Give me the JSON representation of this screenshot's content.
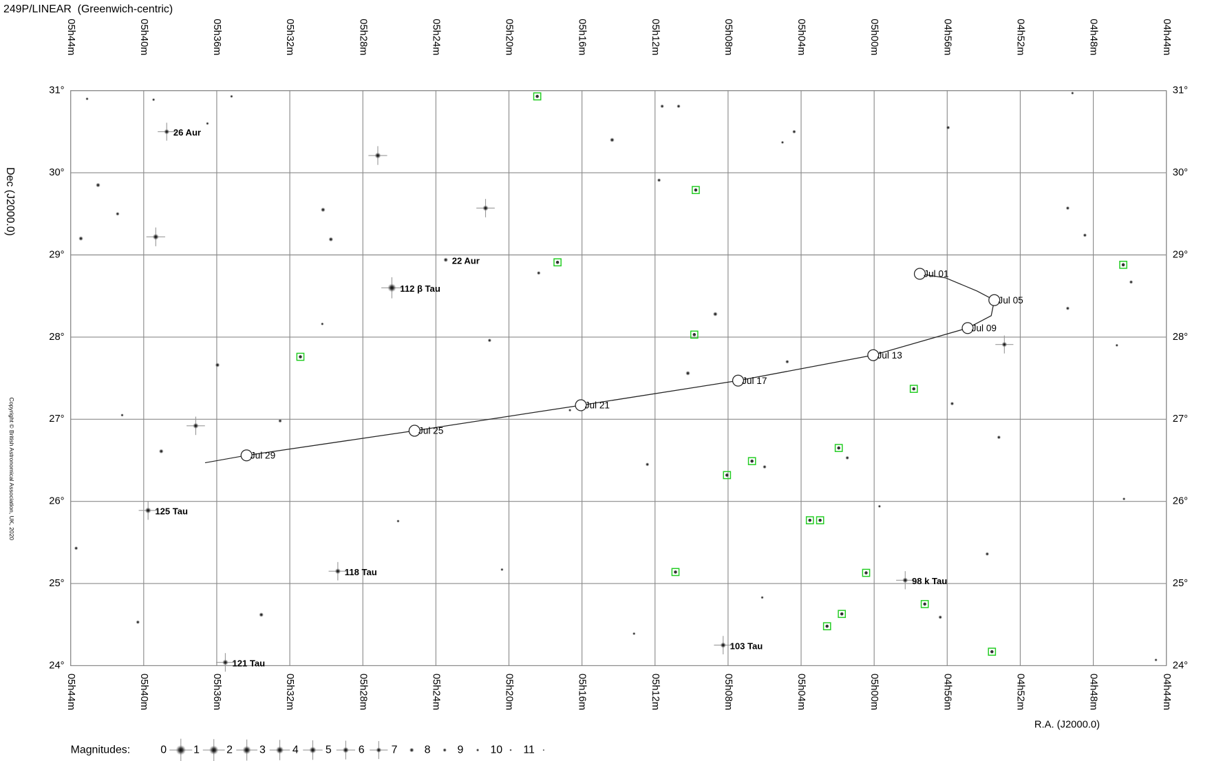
{
  "chart_data": {
    "type": "starmap",
    "title": "249P/LINEAR  (Greenwich-centric)",
    "y_label": "Dec (J2000.0)",
    "x_label": "R.A. (J2000.0)",
    "copyright": "Copyright © British Astronomical Association, UK, 2020",
    "xlim": [
      344,
      284
    ],
    "ylim": [
      24,
      31
    ],
    "grid": true,
    "xticks": [
      {
        "value": 344,
        "label": "05h44m"
      },
      {
        "value": 340,
        "label": "05h40m"
      },
      {
        "value": 336,
        "label": "05h36m"
      },
      {
        "value": 332,
        "label": "05h32m"
      },
      {
        "value": 328,
        "label": "05h28m"
      },
      {
        "value": 324,
        "label": "05h24m"
      },
      {
        "value": 320,
        "label": "05h20m"
      },
      {
        "value": 316,
        "label": "05h16m"
      },
      {
        "value": 312,
        "label": "05h12m"
      },
      {
        "value": 308,
        "label": "05h08m"
      },
      {
        "value": 304,
        "label": "05h04m"
      },
      {
        "value": 300,
        "label": "05h00m"
      },
      {
        "value": 296,
        "label": "04h56m"
      },
      {
        "value": 292,
        "label": "04h52m"
      },
      {
        "value": 288,
        "label": "04h48m"
      },
      {
        "value": 284,
        "label": "04h44m"
      }
    ],
    "yticks": [
      {
        "value": 24,
        "label": "24°"
      },
      {
        "value": 25,
        "label": "25°"
      },
      {
        "value": 26,
        "label": "26°"
      },
      {
        "value": 27,
        "label": "27°"
      },
      {
        "value": 28,
        "label": "28°"
      },
      {
        "value": 29,
        "label": "29°"
      },
      {
        "value": 30,
        "label": "30°"
      },
      {
        "value": 31,
        "label": "31°"
      }
    ],
    "stars": {
      "ra": [
        343.1,
        339.46,
        335.19,
        336.51,
        330.18,
        329.75,
        342.5,
        343.44,
        341.43,
        339.04,
        335.96,
        332.53,
        341.18,
        333.56,
        340.32,
        343.7,
        330.22,
        321.06,
        318.37,
        314.35,
        311.61,
        310.71,
        311.78,
        308.7,
        310.2,
        304.76,
        304.38,
        295.95,
        295.73,
        293.17,
        289.4,
        288.46,
        289.4,
        285.93,
        301.47,
        306.0,
        312.42,
        296.38,
        293.81,
        299.71,
        320.38,
        326.07,
        306.13,
        313.15,
        284.57,
        286.32,
        286.71,
        289.14,
        305.02,
        316.66,
        327.18,
        339.34,
        321.28,
        337.15,
        292.87
      ],
      "dec": [
        30.9,
        30.89,
        30.93,
        30.6,
        29.55,
        29.19,
        29.85,
        29.2,
        29.5,
        26.61,
        27.66,
        26.98,
        27.05,
        24.62,
        24.53,
        25.43,
        28.16,
        27.96,
        28.78,
        30.4,
        30.81,
        30.81,
        29.91,
        28.28,
        27.56,
        27.7,
        30.5,
        30.55,
        27.19,
        26.78,
        29.57,
        29.24,
        28.35,
        28.67,
        26.53,
        26.42,
        26.45,
        24.59,
        25.36,
        25.94,
        25.17,
        25.76,
        24.83,
        24.39,
        24.07,
        26.03,
        27.9,
        30.97,
        30.37,
        27.11,
        30.21,
        29.22,
        29.57,
        26.92,
        27.91
      ],
      "mag": [
        9,
        9,
        9,
        9,
        7,
        7,
        7,
        7,
        8,
        7,
        7,
        8,
        9,
        7,
        8,
        8,
        9,
        8,
        8,
        7,
        8,
        8,
        8,
        7,
        7,
        8,
        8,
        8,
        8,
        8,
        8,
        8,
        8,
        8,
        8,
        8,
        8,
        8,
        8,
        9,
        9,
        9,
        9,
        9,
        9,
        9,
        9,
        9,
        9,
        9,
        5,
        5,
        5.5,
        5.5,
        6
      ]
    },
    "named_stars": [
      {
        "label": "26 Aur",
        "ra": 338.74,
        "dec": 30.5,
        "mag": 6
      },
      {
        "label": "22 Aur",
        "ra": 323.46,
        "dec": 28.94,
        "mag": 7
      },
      {
        "label": "112 β Tau",
        "ra": 326.41,
        "dec": 28.6,
        "mag": 2
      },
      {
        "label": "125 Tau",
        "ra": 339.76,
        "dec": 25.89,
        "mag": 5
      },
      {
        "label": "118 Tau",
        "ra": 329.37,
        "dec": 25.15,
        "mag": 5.5
      },
      {
        "label": "121 Tau",
        "ra": 335.53,
        "dec": 24.04,
        "mag": 5.3
      },
      {
        "label": "103 Tau",
        "ra": 308.27,
        "dec": 24.25,
        "mag": 5.5
      },
      {
        "label": "98 k Tau",
        "ra": 298.3,
        "dec": 25.04,
        "mag": 5.8
      }
    ],
    "objects": {
      "ra": [
        318.45,
        309.77,
        317.34,
        309.85,
        331.42,
        297.83,
        301.94,
        306.69,
        308.06,
        303.52,
        302.96,
        310.88,
        300.44,
        297.23,
        301.77,
        302.58,
        293.55,
        286.36
      ],
      "dec": [
        30.93,
        29.79,
        28.91,
        28.03,
        27.76,
        27.37,
        26.65,
        26.49,
        26.32,
        25.77,
        25.77,
        25.14,
        25.13,
        24.75,
        24.63,
        24.48,
        24.17,
        28.88
      ],
      "color": "#22cc22"
    },
    "comet": {
      "path_ra": [
        336.64,
        334.37,
        325.17,
        316.06,
        307.45,
        300.05,
        294.88,
        293.59,
        293.42,
        294.36,
        296.08,
        297.5
      ],
      "path_dec": [
        26.47,
        26.56,
        26.86,
        27.17,
        27.47,
        27.78,
        28.11,
        28.26,
        28.45,
        28.56,
        28.72,
        28.77
      ],
      "dates": [
        "Jul 01",
        "Jul 05",
        "Jul 09",
        "Jul 13",
        "Jul 17",
        "Jul 21",
        "Jul 25",
        "Jul 29"
      ],
      "date_ra": [
        297.5,
        293.42,
        294.88,
        300.05,
        307.45,
        316.06,
        325.17,
        334.37
      ],
      "date_dec": [
        28.77,
        28.45,
        28.11,
        27.78,
        27.47,
        27.17,
        26.86,
        26.56
      ]
    },
    "legend": {
      "label": "Magnitudes:",
      "values": [
        0,
        1,
        2,
        3,
        4,
        5,
        6,
        7,
        8,
        9,
        10,
        11
      ]
    }
  }
}
